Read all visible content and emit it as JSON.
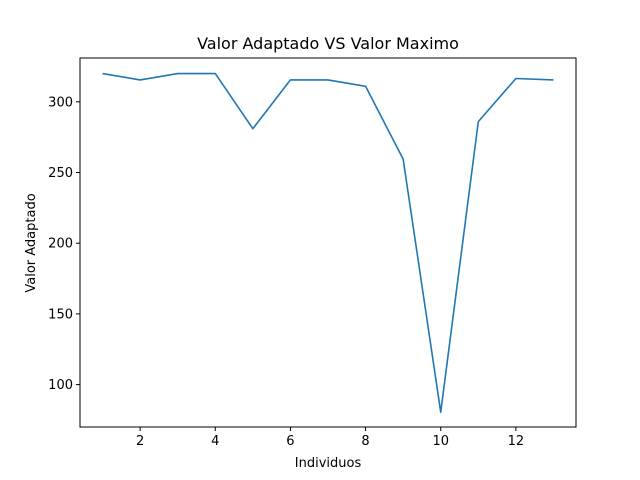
{
  "chart_data": {
    "type": "line",
    "title": "Valor Adaptado VS Valor Maximo",
    "xlabel": "Individuos",
    "ylabel": "Valor Adaptado",
    "xlim": [
      0.4,
      13.6
    ],
    "ylim": [
      70,
      331
    ],
    "xticks": [
      2,
      4,
      6,
      8,
      10,
      12
    ],
    "yticks": [
      100,
      150,
      200,
      250,
      300
    ],
    "grid": false,
    "series": [
      {
        "color": "#1f77b4",
        "x": [
          1,
          2,
          3,
          4,
          5,
          6,
          7,
          8,
          9,
          10,
          11,
          12,
          13
        ],
        "y": [
          320,
          315.5,
          320,
          320,
          281,
          315.5,
          315.5,
          311,
          259.5,
          80.5,
          286,
          316.5,
          315.5
        ]
      }
    ]
  }
}
